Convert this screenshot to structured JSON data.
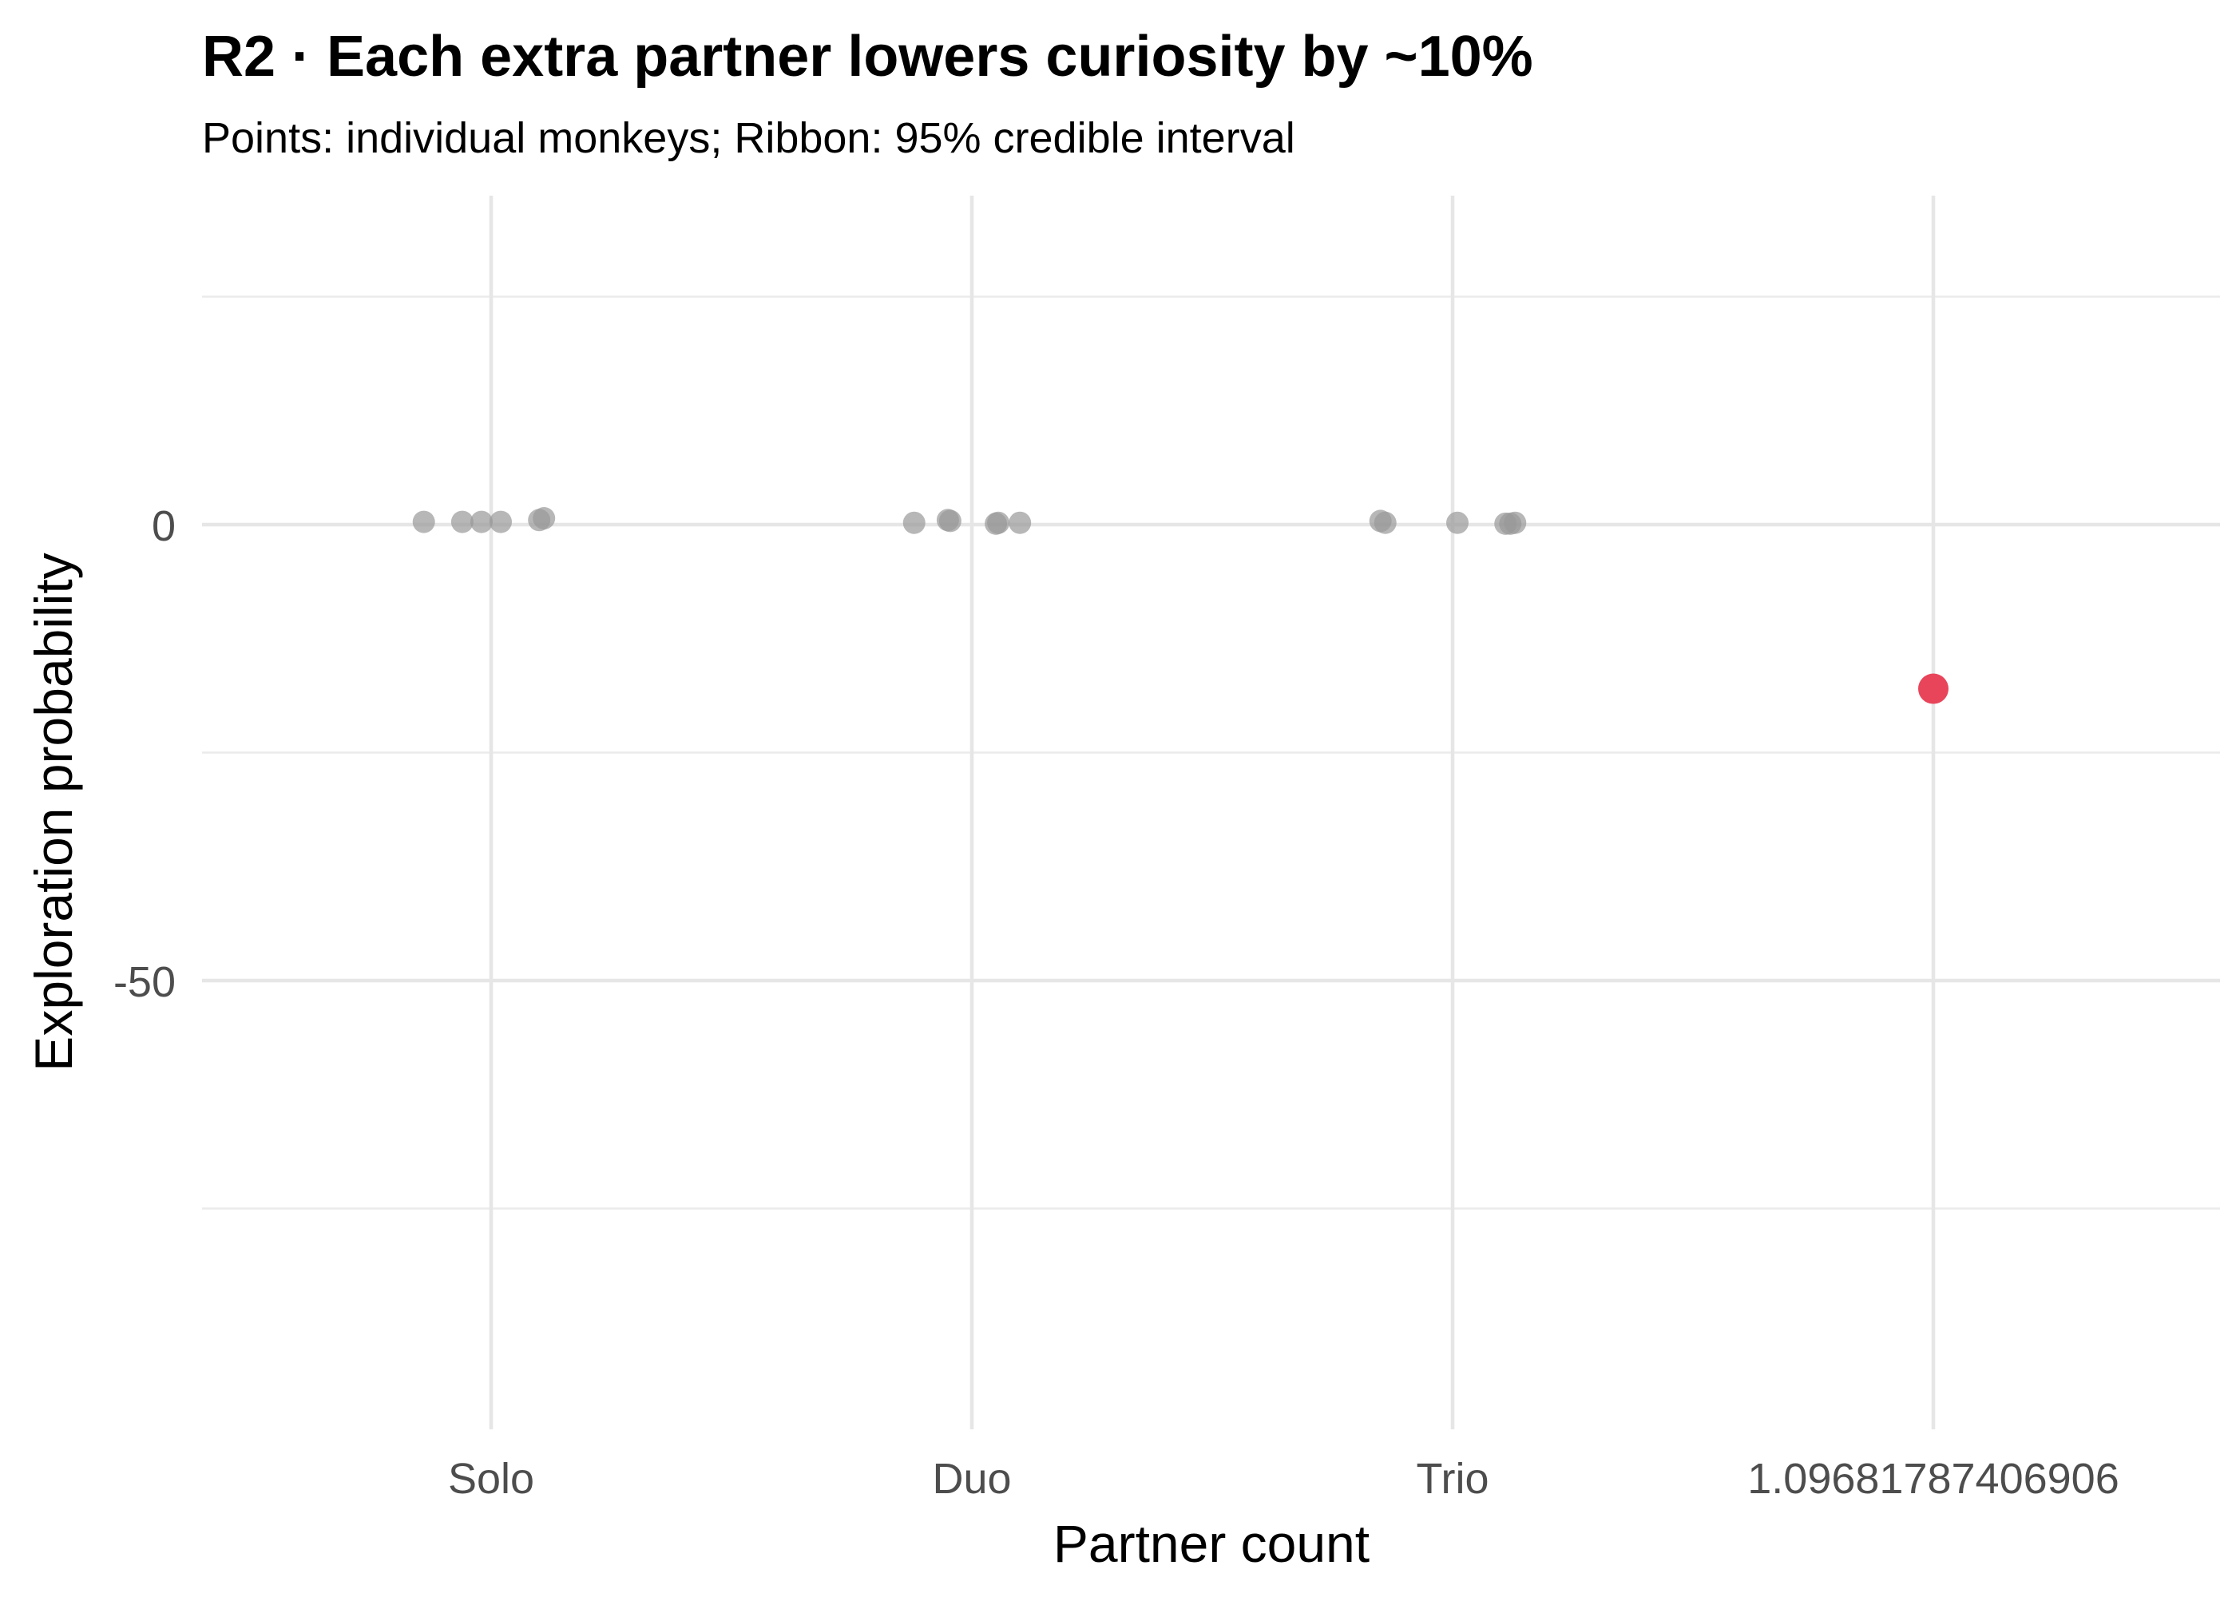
{
  "chart_data": {
    "type": "scatter",
    "title": "R2 · Each extra partner lowers curiosity by ~10%",
    "subtitle": "Points: individual monkeys; Ribbon: 95% credible interval",
    "xlabel": "Partner count",
    "ylabel": "Exploration probability",
    "categories": [
      "Solo",
      "Duo",
      "Trio",
      "1.09681787406906"
    ],
    "y_ticks": [
      0,
      -50
    ],
    "ylim": [
      -98,
      25
    ],
    "grid": true,
    "series": [
      {
        "color": "#999999",
        "points": [
          {
            "x": -0.14,
            "y": 0.3
          },
          {
            "x": -0.06,
            "y": 0.3
          },
          {
            "x": -0.02,
            "y": 0.3
          },
          {
            "x": 0.02,
            "y": 0.3
          },
          {
            "x": 0.1,
            "y": 0.5
          },
          {
            "x": 0.11,
            "y": 0.7
          },
          {
            "x": 0.88,
            "y": 0.2
          },
          {
            "x": 0.95,
            "y": 0.5
          },
          {
            "x": 0.955,
            "y": 0.4
          },
          {
            "x": 1.05,
            "y": 0.1
          },
          {
            "x": 1.055,
            "y": 0.2
          },
          {
            "x": 1.1,
            "y": 0.2
          },
          {
            "x": 1.85,
            "y": 0.4
          },
          {
            "x": 1.86,
            "y": 0.2
          },
          {
            "x": 2.01,
            "y": 0.2
          },
          {
            "x": 2.11,
            "y": 0.1
          },
          {
            "x": 2.12,
            "y": 0.1
          },
          {
            "x": 2.13,
            "y": 0.2
          }
        ]
      },
      {
        "color": "#E8455A",
        "points": [
          {
            "x": 3.0,
            "y": -18
          }
        ]
      }
    ]
  }
}
